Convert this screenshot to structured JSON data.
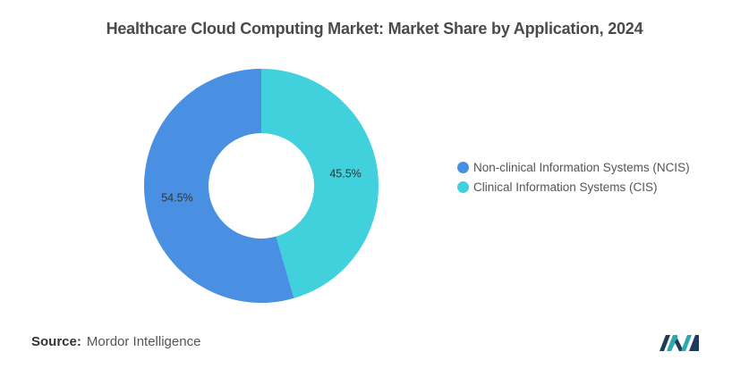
{
  "title": "Healthcare Cloud Computing Market: Market Share by Application, 2024",
  "source": {
    "label": "Source:",
    "text": "Mordor Intelligence"
  },
  "colors": {
    "ncis": "#4a90e2",
    "cis": "#41d1dc"
  },
  "chart_data": {
    "type": "pie",
    "donut": true,
    "title": "Healthcare Cloud Computing Market: Market Share by Application, 2024",
    "categories": [
      "Non-clinical Information Systems (NCIS)",
      "Clinical Information Systems (CIS)"
    ],
    "values": [
      54.5,
      45.5
    ],
    "labels": [
      "54.5%",
      "45.5%"
    ],
    "legend_position": "right"
  },
  "logo": {
    "name": "mordor-intelligence-logo"
  }
}
